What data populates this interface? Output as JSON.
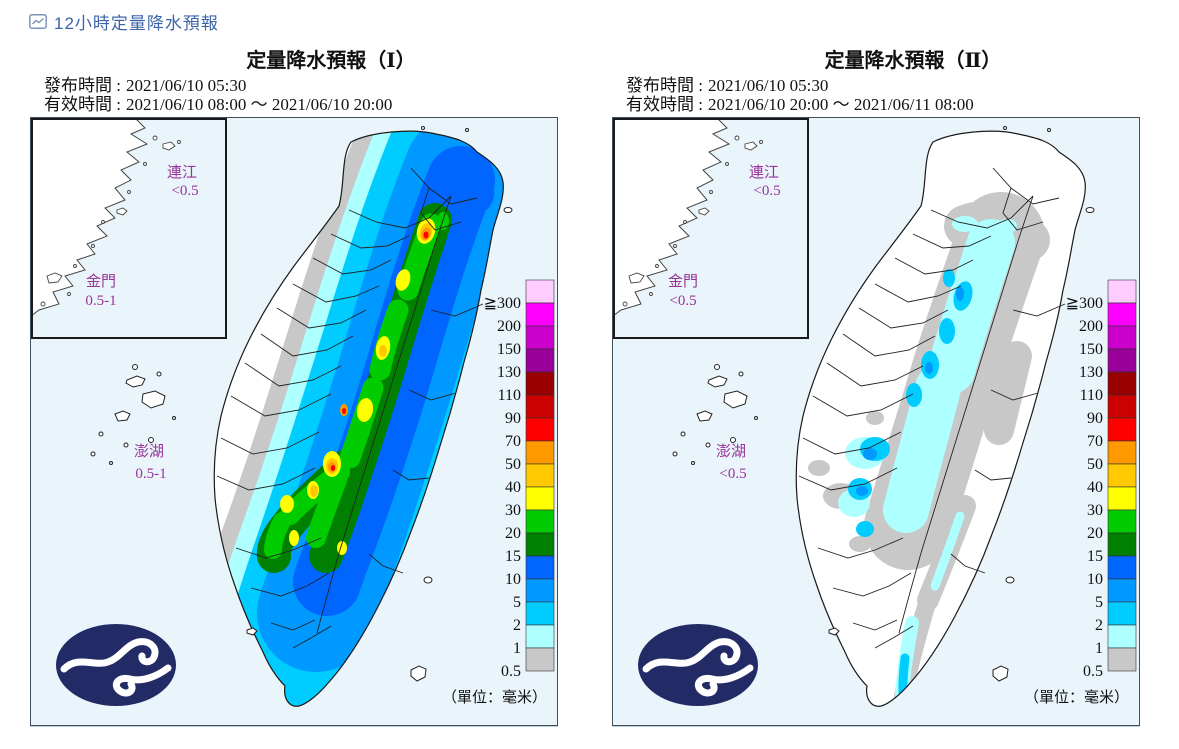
{
  "header": {
    "title": "12小時定量降水預報"
  },
  "panels": [
    {
      "title": "定量降水預報（Ⅰ）",
      "issued_label": "發布時間 :",
      "issued_value": "2021/06/10 05:30",
      "valid_label": "有效時間 :",
      "valid_value": "2021/06/10 08:00 ～ 2021/06/10 20:00",
      "lianjiang_label": "連江",
      "lianjiang_value": "<0.5",
      "kinmen_label": "金門",
      "kinmen_value": "0.5-1",
      "penghu_label": "澎湖",
      "penghu_value": "0.5-1"
    },
    {
      "title": "定量降水預報（Ⅱ）",
      "issued_label": "發布時間 :",
      "issued_value": "2021/06/10 05:30",
      "valid_label": "有效時間 :",
      "valid_value": "2021/06/10 20:00 ～ 2021/06/11 08:00",
      "lianjiang_label": "連江",
      "lianjiang_value": "<0.5",
      "kinmen_label": "金門",
      "kinmen_value": "<0.5",
      "penghu_label": "澎湖",
      "penghu_value": "<0.5"
    }
  ],
  "legend": {
    "labels": [
      "≧300",
      "200",
      "150",
      "130",
      "110",
      "90",
      "70",
      "50",
      "40",
      "30",
      "20",
      "15",
      "10",
      "5",
      "2",
      "1",
      "0.5"
    ],
    "colors": [
      "#FFCCFF",
      "#FF00FF",
      "#CC00CC",
      "#990099",
      "#990000",
      "#CC0000",
      "#FF0000",
      "#FF9900",
      "#FFC800",
      "#FFFF00",
      "#00CC00",
      "#008000",
      "#0066FF",
      "#0099FF",
      "#00CCFF",
      "#AEFFFF",
      "#C8C8C8"
    ],
    "unit": "（單位：毫米）"
  },
  "colors": {
    "sea": "#EAF4FB",
    "island_fill": "#FFFFFF",
    "coast_line": "#1A1A1A",
    "label_purple": "#993399",
    "link_blue": "#3D64A8",
    "logo_navy": "#232B66"
  }
}
